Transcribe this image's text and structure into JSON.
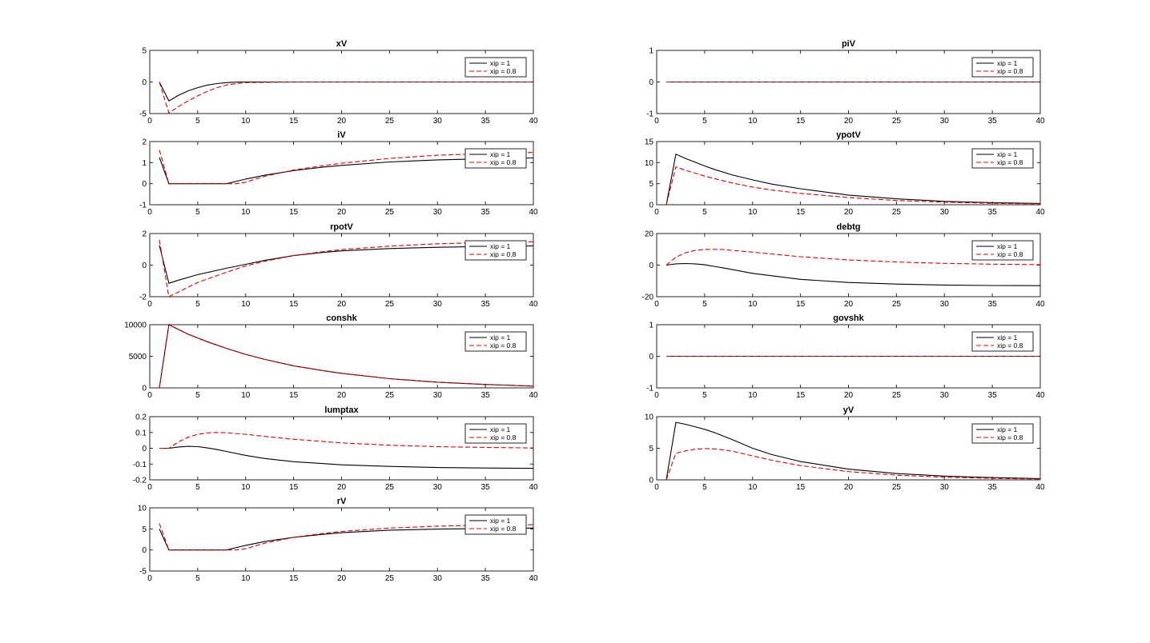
{
  "figure": {
    "legend_labels": [
      "xip = 1",
      "xip = 0.8"
    ],
    "legend_placement": "top-right",
    "series_colors": [
      "#000000",
      "#e00000"
    ],
    "series_styles": [
      "solid",
      "dashed"
    ]
  },
  "chart_data": [
    {
      "type": "line",
      "title": "xV",
      "xlim": [
        0,
        40
      ],
      "xticks": [
        0,
        5,
        10,
        15,
        20,
        25,
        30,
        35,
        40
      ],
      "ylim": [
        -5,
        5
      ],
      "yticks": [
        -5,
        0,
        5
      ],
      "ytick_labels": [
        "-5",
        "0",
        "5"
      ],
      "grid": false,
      "legend": "top-right",
      "series": [
        {
          "name": "xip = 1",
          "x": [
            1,
            2,
            3,
            4,
            5,
            6,
            7,
            8,
            9,
            10,
            15,
            20,
            25,
            30,
            35,
            40
          ],
          "y": [
            0,
            -3,
            -2.1,
            -1.4,
            -0.9,
            -0.5,
            -0.25,
            -0.1,
            -0.03,
            0,
            0,
            0,
            0,
            0,
            0,
            0
          ]
        },
        {
          "name": "xip = 0.8",
          "x": [
            1,
            2,
            3,
            4,
            5,
            6,
            7,
            8,
            9,
            10,
            15,
            20,
            25,
            30,
            35,
            40
          ],
          "y": [
            0,
            -4.9,
            -3.9,
            -3.0,
            -2.2,
            -1.5,
            -0.9,
            -0.5,
            -0.25,
            -0.1,
            0,
            0,
            0,
            0,
            0,
            0
          ]
        }
      ]
    },
    {
      "type": "line",
      "title": "piV",
      "xlim": [
        0,
        40
      ],
      "xticks": [
        0,
        5,
        10,
        15,
        20,
        25,
        30,
        35,
        40
      ],
      "ylim": [
        -1,
        1
      ],
      "yticks": [
        -1,
        0,
        1
      ],
      "ytick_labels": [
        "-1",
        "0",
        "1"
      ],
      "grid": false,
      "legend": "top-right",
      "series": [
        {
          "name": "xip = 1",
          "x": [
            1,
            40
          ],
          "y": [
            0,
            0
          ]
        },
        {
          "name": "xip = 0.8",
          "x": [
            1,
            40
          ],
          "y": [
            0,
            0
          ]
        }
      ]
    },
    {
      "type": "line",
      "title": "iV",
      "xlim": [
        0,
        40
      ],
      "xticks": [
        0,
        5,
        10,
        15,
        20,
        25,
        30,
        35,
        40
      ],
      "ylim": [
        -1,
        2
      ],
      "yticks": [
        -1,
        0,
        1,
        2
      ],
      "ytick_labels": [
        "-1",
        "0",
        "1",
        "2"
      ],
      "grid": false,
      "legend": "top-right",
      "series": [
        {
          "name": "xip = 1",
          "x": [
            1,
            2,
            5,
            8,
            10,
            12,
            15,
            18,
            20,
            25,
            30,
            35,
            40
          ],
          "y": [
            1.25,
            0,
            0,
            0,
            0.22,
            0.4,
            0.62,
            0.78,
            0.87,
            1.03,
            1.13,
            1.18,
            1.22
          ]
        },
        {
          "name": "xip = 0.8",
          "x": [
            1,
            2,
            5,
            8,
            9,
            10,
            12,
            15,
            18,
            20,
            25,
            30,
            35,
            40
          ],
          "y": [
            1.6,
            0,
            0,
            0,
            0,
            0.07,
            0.35,
            0.65,
            0.85,
            0.97,
            1.2,
            1.35,
            1.43,
            1.48
          ]
        }
      ]
    },
    {
      "type": "line",
      "title": "ypotV",
      "xlim": [
        0,
        40
      ],
      "xticks": [
        0,
        5,
        10,
        15,
        20,
        25,
        30,
        35,
        40
      ],
      "ylim": [
        0,
        15
      ],
      "yticks": [
        0,
        5,
        10,
        15
      ],
      "ytick_labels": [
        "0",
        "5",
        "10",
        "15"
      ],
      "grid": false,
      "legend": "top-right",
      "series": [
        {
          "name": "xip = 1",
          "x": [
            1,
            2,
            3,
            4,
            5,
            6,
            8,
            10,
            12,
            15,
            20,
            25,
            30,
            35,
            40
          ],
          "y": [
            0,
            12,
            11.0,
            10.1,
            9.2,
            8.4,
            7.0,
            5.9,
            4.9,
            3.8,
            2.3,
            1.4,
            0.8,
            0.5,
            0.3
          ]
        },
        {
          "name": "xip = 0.8",
          "x": [
            1,
            2,
            3,
            4,
            5,
            6,
            8,
            10,
            12,
            15,
            20,
            25,
            30,
            35,
            40
          ],
          "y": [
            0,
            9,
            8.2,
            7.5,
            6.8,
            6.2,
            5.1,
            4.2,
            3.5,
            2.7,
            1.7,
            1.0,
            0.6,
            0.35,
            0.2
          ]
        }
      ]
    },
    {
      "type": "line",
      "title": "rpotV",
      "xlim": [
        0,
        40
      ],
      "xticks": [
        0,
        5,
        10,
        15,
        20,
        25,
        30,
        35,
        40
      ],
      "ylim": [
        -2,
        2
      ],
      "yticks": [
        -2,
        0,
        2
      ],
      "ytick_labels": [
        "-2",
        "0",
        "2"
      ],
      "grid": false,
      "legend": "top-right",
      "series": [
        {
          "name": "xip = 1",
          "x": [
            1,
            2,
            3,
            5,
            8,
            10,
            12,
            15,
            18,
            20,
            25,
            30,
            35,
            40
          ],
          "y": [
            1.25,
            -1.15,
            -0.95,
            -0.6,
            -0.2,
            0.05,
            0.3,
            0.6,
            0.8,
            0.9,
            1.05,
            1.13,
            1.18,
            1.22
          ]
        },
        {
          "name": "xip = 0.8",
          "x": [
            1,
            2,
            3,
            5,
            8,
            10,
            12,
            15,
            18,
            20,
            25,
            30,
            35,
            40
          ],
          "y": [
            1.6,
            -2.0,
            -1.7,
            -1.1,
            -0.45,
            -0.05,
            0.25,
            0.6,
            0.85,
            0.98,
            1.2,
            1.35,
            1.43,
            1.48
          ]
        }
      ]
    },
    {
      "type": "line",
      "title": "debtg",
      "xlim": [
        0,
        40
      ],
      "xticks": [
        0,
        5,
        10,
        15,
        20,
        25,
        30,
        35,
        40
      ],
      "ylim": [
        -20,
        20
      ],
      "yticks": [
        -20,
        0,
        20
      ],
      "ytick_labels": [
        "-20",
        "0",
        "20"
      ],
      "grid": false,
      "legend": "top-right",
      "series": [
        {
          "name": "xip = 1",
          "x": [
            1,
            2,
            3,
            4,
            5,
            7,
            10,
            15,
            20,
            25,
            30,
            35,
            40
          ],
          "y": [
            0,
            0.8,
            1.0,
            0.8,
            0.2,
            -1.8,
            -5.2,
            -9.0,
            -11.0,
            -12.0,
            -12.6,
            -12.9,
            -13.0
          ]
        },
        {
          "name": "xip = 0.8",
          "x": [
            1,
            2,
            3,
            4,
            5,
            6,
            7,
            10,
            15,
            20,
            25,
            30,
            35,
            40
          ],
          "y": [
            0,
            5,
            7.8,
            9.3,
            9.9,
            10.0,
            9.8,
            8.2,
            5.3,
            3.3,
            2.0,
            1.1,
            0.6,
            0.3
          ]
        }
      ]
    },
    {
      "type": "line",
      "title": "conshk",
      "xlim": [
        0,
        40
      ],
      "xticks": [
        0,
        5,
        10,
        15,
        20,
        25,
        30,
        35,
        40
      ],
      "ylim": [
        0,
        10000
      ],
      "yticks": [
        0,
        5000,
        10000
      ],
      "ytick_labels": [
        "0",
        "5000",
        "10000"
      ],
      "grid": false,
      "legend": "top-right",
      "series": [
        {
          "name": "xip = 1",
          "x": [
            1,
            2,
            4,
            6,
            8,
            10,
            12,
            15,
            18,
            20,
            25,
            30,
            35,
            40
          ],
          "y": [
            0,
            10000,
            8500,
            7300,
            6250,
            5300,
            4500,
            3500,
            2750,
            2300,
            1450,
            900,
            550,
            280
          ]
        },
        {
          "name": "xip = 0.8",
          "x": [
            1,
            2,
            4,
            6,
            8,
            10,
            12,
            15,
            18,
            20,
            25,
            30,
            35,
            40
          ],
          "y": [
            0,
            10000,
            8500,
            7300,
            6250,
            5300,
            4500,
            3500,
            2750,
            2300,
            1450,
            900,
            550,
            280
          ]
        }
      ]
    },
    {
      "type": "line",
      "title": "govshk",
      "xlim": [
        0,
        40
      ],
      "xticks": [
        0,
        5,
        10,
        15,
        20,
        25,
        30,
        35,
        40
      ],
      "ylim": [
        -1,
        1
      ],
      "yticks": [
        -1,
        0,
        1
      ],
      "ytick_labels": [
        "-1",
        "0",
        "1"
      ],
      "grid": false,
      "legend": "top-right",
      "series": [
        {
          "name": "xip = 1",
          "x": [
            1,
            40
          ],
          "y": [
            0,
            0
          ]
        },
        {
          "name": "xip = 0.8",
          "x": [
            1,
            40
          ],
          "y": [
            0,
            0
          ]
        }
      ]
    },
    {
      "type": "line",
      "title": "lumptax",
      "xlim": [
        0,
        40
      ],
      "xticks": [
        0,
        5,
        10,
        15,
        20,
        25,
        30,
        35,
        40
      ],
      "ylim": [
        -0.2,
        0.2
      ],
      "yticks": [
        -0.2,
        -0.1,
        0,
        0.1,
        0.2
      ],
      "ytick_labels": [
        "-0.2",
        "-0.1",
        "0",
        "0.1",
        "0.2"
      ],
      "grid": false,
      "legend": "top-right",
      "series": [
        {
          "name": "xip = 1",
          "x": [
            1,
            2,
            3,
            4,
            5,
            6,
            7,
            8,
            10,
            12,
            15,
            20,
            25,
            30,
            35,
            40
          ],
          "y": [
            0,
            0,
            0.008,
            0.012,
            0.01,
            0.002,
            -0.008,
            -0.02,
            -0.045,
            -0.065,
            -0.085,
            -0.105,
            -0.115,
            -0.122,
            -0.125,
            -0.127
          ]
        },
        {
          "name": "xip = 0.8",
          "x": [
            1,
            2,
            3,
            4,
            5,
            6,
            7,
            8,
            10,
            12,
            15,
            20,
            25,
            30,
            35,
            40
          ],
          "y": [
            0,
            0,
            0.04,
            0.07,
            0.088,
            0.097,
            0.1,
            0.098,
            0.088,
            0.075,
            0.057,
            0.034,
            0.019,
            0.01,
            0.005,
            0.002
          ]
        }
      ]
    },
    {
      "type": "line",
      "title": "yV",
      "xlim": [
        0,
        40
      ],
      "xticks": [
        0,
        5,
        10,
        15,
        20,
        25,
        30,
        35,
        40
      ],
      "ylim": [
        0,
        10
      ],
      "yticks": [
        0,
        5,
        10
      ],
      "ytick_labels": [
        "0",
        "5",
        "10"
      ],
      "grid": false,
      "legend": "top-right",
      "series": [
        {
          "name": "xip = 1",
          "x": [
            1,
            2,
            3,
            4,
            5,
            6,
            7,
            8,
            10,
            12,
            15,
            20,
            25,
            30,
            35,
            40
          ],
          "y": [
            0,
            9.1,
            8.8,
            8.4,
            8.0,
            7.5,
            6.9,
            6.3,
            5.0,
            4.0,
            2.9,
            1.7,
            1.0,
            0.6,
            0.35,
            0.2
          ]
        },
        {
          "name": "xip = 0.8",
          "x": [
            1,
            2,
            3,
            4,
            5,
            6,
            7,
            8,
            10,
            12,
            15,
            20,
            25,
            30,
            35,
            40
          ],
          "y": [
            0,
            4.2,
            4.6,
            4.85,
            4.95,
            4.9,
            4.75,
            4.5,
            3.8,
            3.1,
            2.25,
            1.3,
            0.75,
            0.42,
            0.24,
            0.13
          ]
        }
      ]
    },
    {
      "type": "line",
      "title": "rV",
      "xlim": [
        0,
        40
      ],
      "xticks": [
        0,
        5,
        10,
        15,
        20,
        25,
        30,
        35,
        40
      ],
      "ylim": [
        -5,
        10
      ],
      "yticks": [
        -5,
        0,
        5,
        10
      ],
      "ytick_labels": [
        "-5",
        "0",
        "5",
        "10"
      ],
      "grid": false,
      "legend": "top-right",
      "series": [
        {
          "name": "xip = 1",
          "x": [
            1,
            2,
            5,
            8,
            10,
            12,
            15,
            18,
            20,
            25,
            30,
            35,
            40
          ],
          "y": [
            5,
            0,
            0,
            0,
            1.1,
            2.0,
            3.0,
            3.7,
            4.1,
            4.7,
            4.95,
            5.1,
            5.2
          ]
        },
        {
          "name": "xip = 0.8",
          "x": [
            1,
            2,
            5,
            8,
            9,
            10,
            12,
            15,
            18,
            20,
            25,
            30,
            35,
            40
          ],
          "y": [
            6.3,
            0,
            0,
            0,
            0,
            0.3,
            1.6,
            3.0,
            3.9,
            4.4,
            5.2,
            5.65,
            5.9,
            6.0
          ]
        }
      ]
    }
  ]
}
